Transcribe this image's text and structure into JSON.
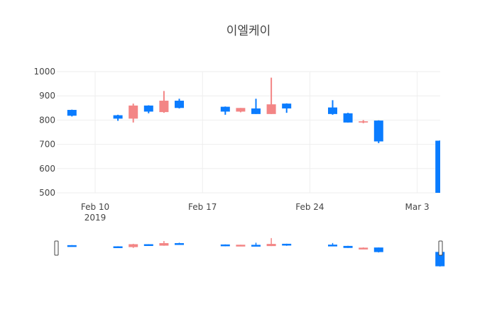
{
  "title": "이엘케이",
  "colors": {
    "increasing": "#f38585",
    "decreasing": "#0a7cff",
    "grid": "#eeeeee",
    "text": "#444444",
    "rangeslider_handle": "#444444"
  },
  "chart_data": {
    "type": "candlestick",
    "title": "이엘케이",
    "xlabel": "",
    "ylabel": "",
    "ylim": [
      490,
      1030
    ],
    "grid": true,
    "legend": "none",
    "yticks": [
      500,
      600,
      700,
      800,
      900,
      1000
    ],
    "xticks": [
      {
        "date": "2019-02-10",
        "label": "Feb 10",
        "sublabel": "2019"
      },
      {
        "date": "2019-02-17",
        "label": "Feb 17",
        "sublabel": ""
      },
      {
        "date": "2019-02-24",
        "label": "Feb 24",
        "sublabel": ""
      },
      {
        "date": "2019-03-03",
        "label": "Mar 3",
        "sublabel": ""
      }
    ],
    "xrange": [
      "2019-02-07T12:00",
      "2019-03-04T12:00"
    ],
    "rangeslider": true,
    "candles": [
      {
        "date": "2019-02-08",
        "open": 842,
        "high": 843,
        "low": 815,
        "close": 818
      },
      {
        "date": "2019-02-11",
        "open": 820,
        "high": 822,
        "low": 797,
        "close": 806
      },
      {
        "date": "2019-02-12",
        "open": 806,
        "high": 868,
        "low": 790,
        "close": 860
      },
      {
        "date": "2019-02-13",
        "open": 860,
        "high": 861,
        "low": 828,
        "close": 835
      },
      {
        "date": "2019-02-14",
        "open": 833,
        "high": 920,
        "low": 830,
        "close": 880
      },
      {
        "date": "2019-02-15",
        "open": 880,
        "high": 888,
        "low": 848,
        "close": 850
      },
      {
        "date": "2019-02-18",
        "open": 855,
        "high": 856,
        "low": 822,
        "close": 835
      },
      {
        "date": "2019-02-19",
        "open": 835,
        "high": 850,
        "low": 832,
        "close": 850
      },
      {
        "date": "2019-02-20",
        "open": 848,
        "high": 888,
        "low": 825,
        "close": 825
      },
      {
        "date": "2019-02-21",
        "open": 825,
        "high": 975,
        "low": 825,
        "close": 865
      },
      {
        "date": "2019-02-22",
        "open": 868,
        "high": 869,
        "low": 830,
        "close": 848
      },
      {
        "date": "2019-02-25",
        "open": 852,
        "high": 882,
        "low": 822,
        "close": 825
      },
      {
        "date": "2019-02-26",
        "open": 828,
        "high": 830,
        "low": 790,
        "close": 790
      },
      {
        "date": "2019-02-27",
        "open": 790,
        "high": 800,
        "low": 787,
        "close": 795
      },
      {
        "date": "2019-02-28",
        "open": 798,
        "high": 799,
        "low": 705,
        "close": 712
      },
      {
        "date": "2019-03-04",
        "open": 715,
        "high": 716,
        "low": 440,
        "close": 445
      }
    ]
  }
}
